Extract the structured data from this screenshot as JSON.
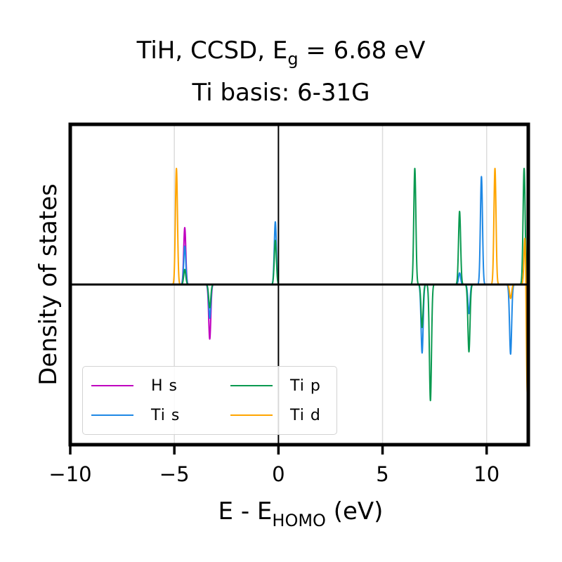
{
  "title": {
    "line1_pre": "TiH, CCSD, E",
    "line1_sub": "g",
    "line1_post": " = 6.68 eV",
    "line2": "Ti basis: 6-31G"
  },
  "xlabel": {
    "pre": "E - E",
    "sub": "HOMO",
    "post": " (eV)"
  },
  "ylabel": "Density of states",
  "legend": [
    {
      "label": "H s",
      "color": "#c000c0"
    },
    {
      "label": "Ti s",
      "color": "#1e88e5"
    },
    {
      "label": "Ti p",
      "color": "#0a9a50"
    },
    {
      "label": "Ti d",
      "color": "#ffa500"
    }
  ],
  "chart_data": {
    "type": "line",
    "title": "TiH, CCSD, E_g = 6.68 eV / Ti basis: 6-31G",
    "xlabel": "E - E_HOMO (eV)",
    "ylabel": "Density of states",
    "xlim": [
      -10,
      12
    ],
    "ylim": [
      -1.38,
      1.38
    ],
    "xticks": [
      -10,
      -5,
      0,
      5,
      10
    ],
    "xtick_labels": [
      "−10",
      "−5",
      "0",
      "5",
      "10"
    ],
    "grid_x": [
      -5,
      5,
      10
    ],
    "vline": 0,
    "hline": 0,
    "legend_position": "lower-left",
    "peak_width": 0.05,
    "series": [
      {
        "name": "H s",
        "color": "#c000c0",
        "peaks": [
          {
            "x": -4.5,
            "h": 0.49
          },
          {
            "x": -3.3,
            "h": -0.47
          }
        ]
      },
      {
        "name": "Ti s",
        "color": "#1e88e5",
        "peaks": [
          {
            "x": -4.5,
            "h": 0.33
          },
          {
            "x": -3.3,
            "h": -0.29
          },
          {
            "x": -0.15,
            "h": 0.54
          },
          {
            "x": 6.9,
            "h": -0.59
          },
          {
            "x": 8.7,
            "h": 0.1
          },
          {
            "x": 9.15,
            "h": -0.25
          },
          {
            "x": 9.75,
            "h": 0.93
          },
          {
            "x": 11.15,
            "h": -0.6
          }
        ]
      },
      {
        "name": "Ti p",
        "color": "#0a9a50",
        "peaks": [
          {
            "x": -4.5,
            "h": 0.13
          },
          {
            "x": -3.3,
            "h": -0.2
          },
          {
            "x": -0.15,
            "h": 0.38
          },
          {
            "x": 6.55,
            "h": 1.0
          },
          {
            "x": 6.9,
            "h": -0.37
          },
          {
            "x": 7.3,
            "h": -1.0
          },
          {
            "x": 8.7,
            "h": 0.63
          },
          {
            "x": 9.15,
            "h": -0.58
          },
          {
            "x": 11.8,
            "h": 1.0
          }
        ]
      },
      {
        "name": "Ti d",
        "color": "#ffa500",
        "peaks": [
          {
            "x": -4.9,
            "h": 1.0
          },
          {
            "x": 10.4,
            "h": 1.0
          },
          {
            "x": 11.15,
            "h": -0.12
          },
          {
            "x": 11.85,
            "h": 0.49
          },
          {
            "x": 11.95,
            "h": -1.0
          }
        ]
      }
    ]
  }
}
